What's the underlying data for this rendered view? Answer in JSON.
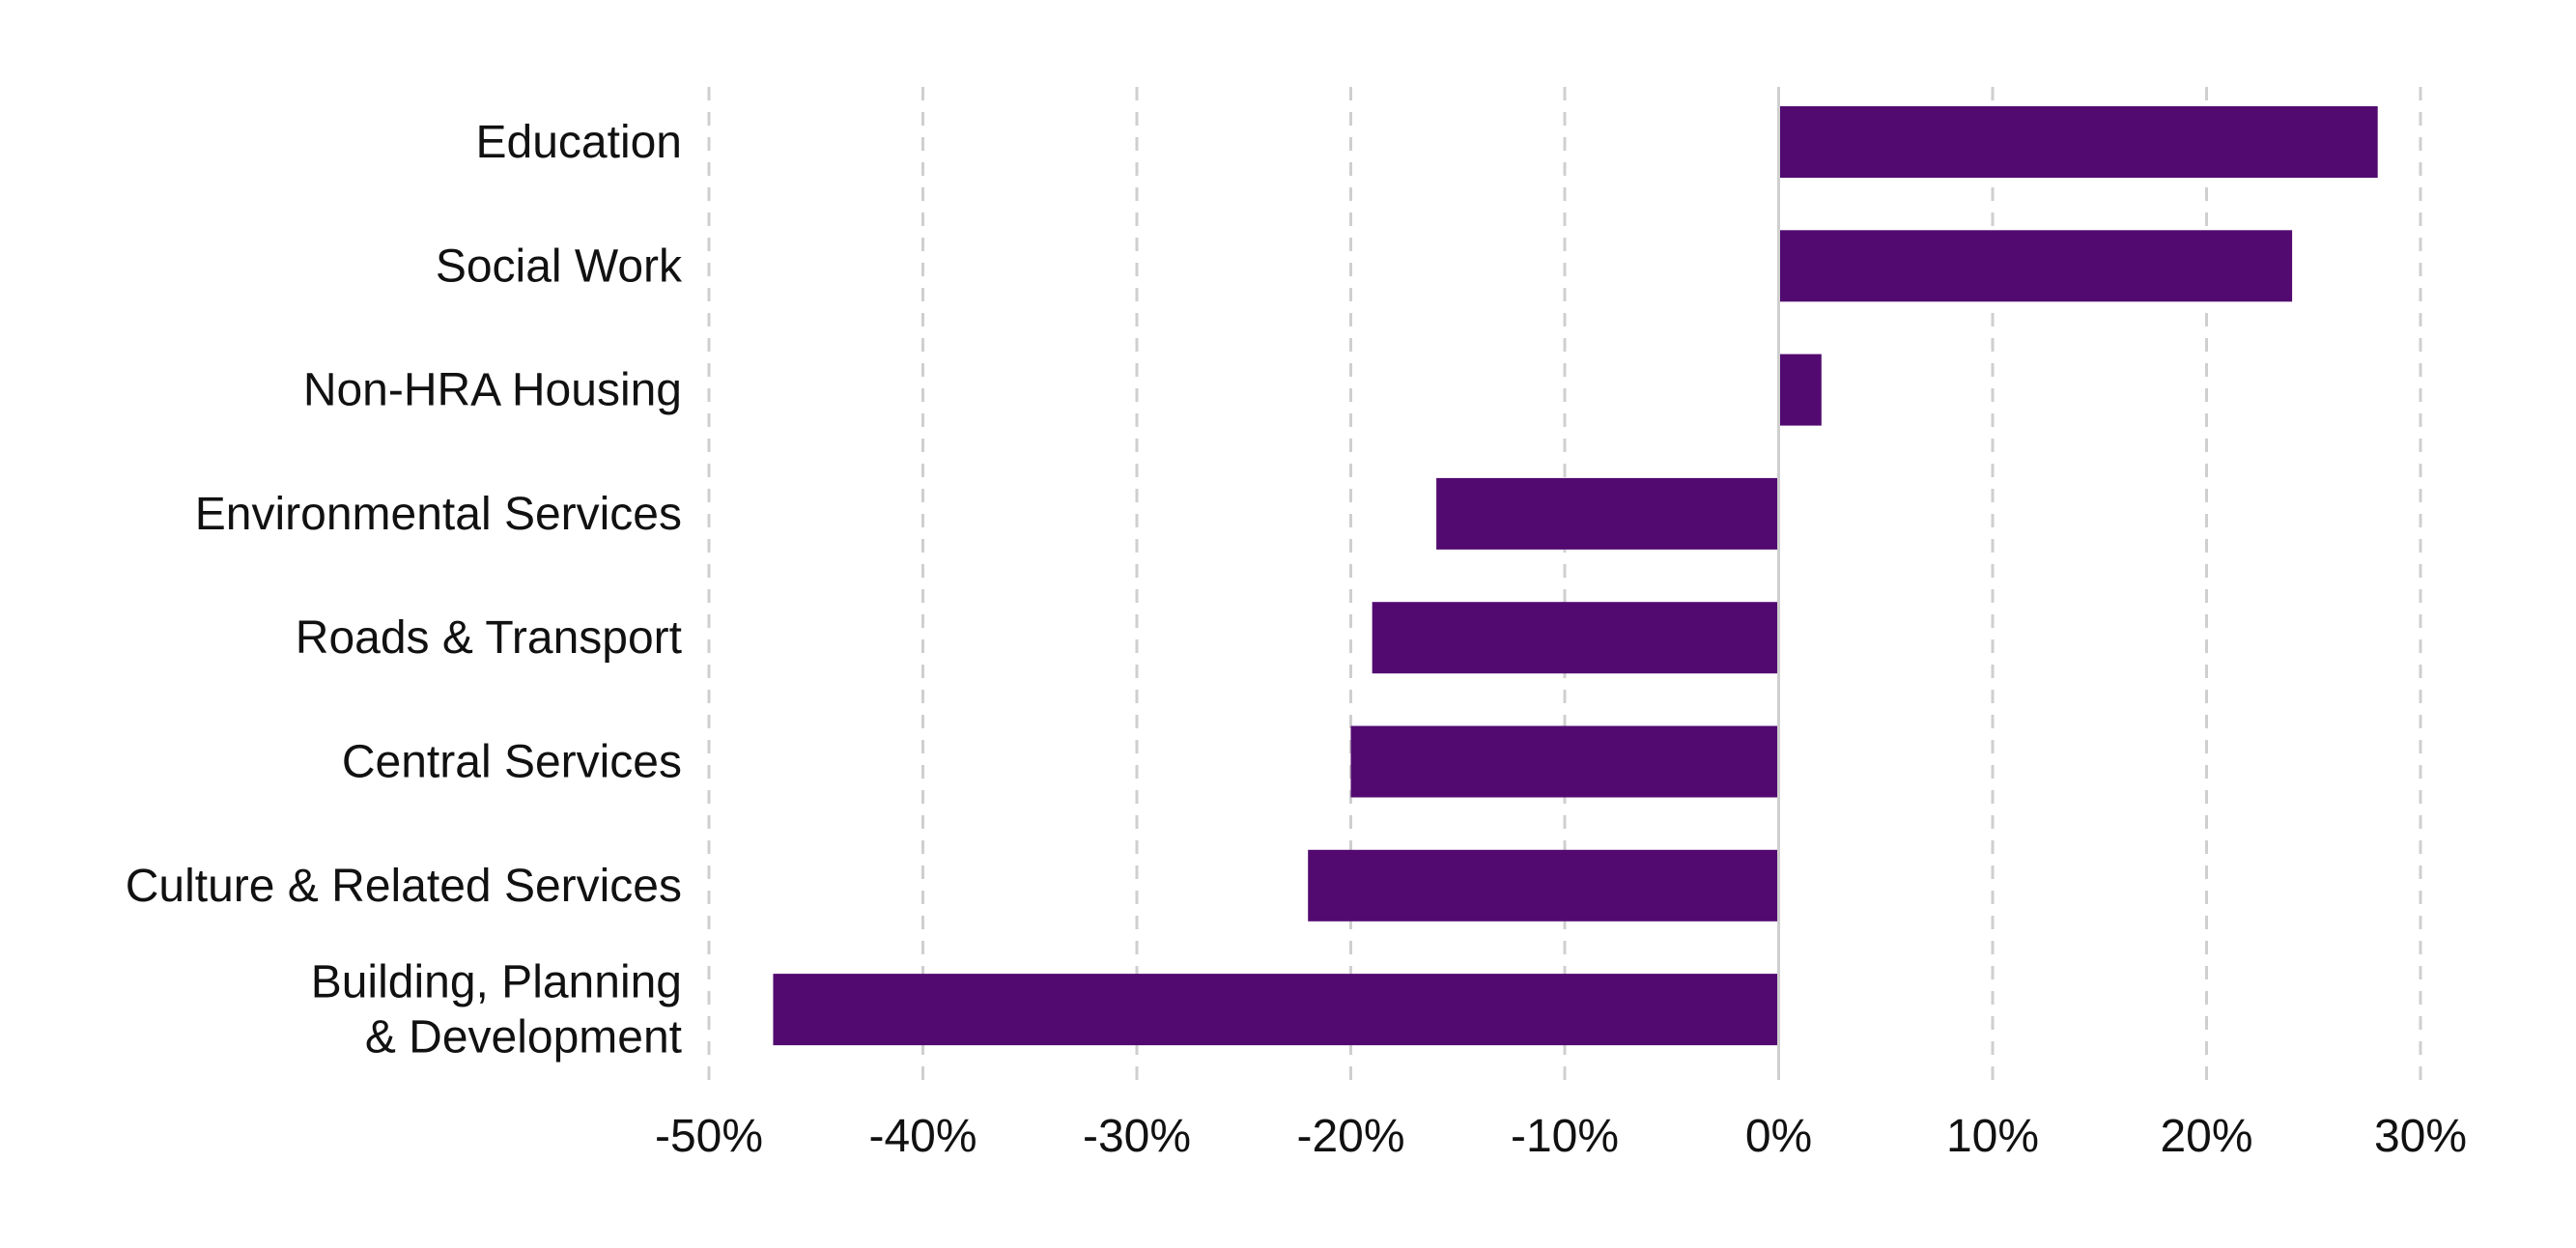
{
  "chart_data": {
    "type": "bar",
    "orientation": "horizontal",
    "title": "",
    "xlabel": "",
    "ylabel": "",
    "categories": [
      "Education",
      "Social Work",
      "Non-HRA Housing",
      "Environmental Services",
      "Roads & Transport",
      "Central Services",
      "Culture & Related Services",
      "Building, Planning & Development"
    ],
    "category_lines": [
      [
        "Education"
      ],
      [
        "Social Work"
      ],
      [
        "Non-HRA Housing"
      ],
      [
        "Environmental Services"
      ],
      [
        "Roads & Transport"
      ],
      [
        "Central Services"
      ],
      [
        "Culture & Related Services"
      ],
      [
        "Building, Planning",
        "& Development"
      ]
    ],
    "values": [
      28,
      24,
      2,
      -16,
      -19,
      -20,
      -22,
      -47
    ],
    "xlim": [
      -50,
      30
    ],
    "xticks": [
      -50,
      -40,
      -30,
      -20,
      -10,
      0,
      10,
      20,
      30
    ],
    "xtick_labels": [
      "-50%",
      "-40%",
      "-30%",
      "-20%",
      "-10%",
      "0%",
      "10%",
      "20%",
      "30%"
    ],
    "grid": "vertical dashed",
    "legend": "none",
    "bar_color": "#520a70",
    "grid_color": "#cfcfcf"
  }
}
